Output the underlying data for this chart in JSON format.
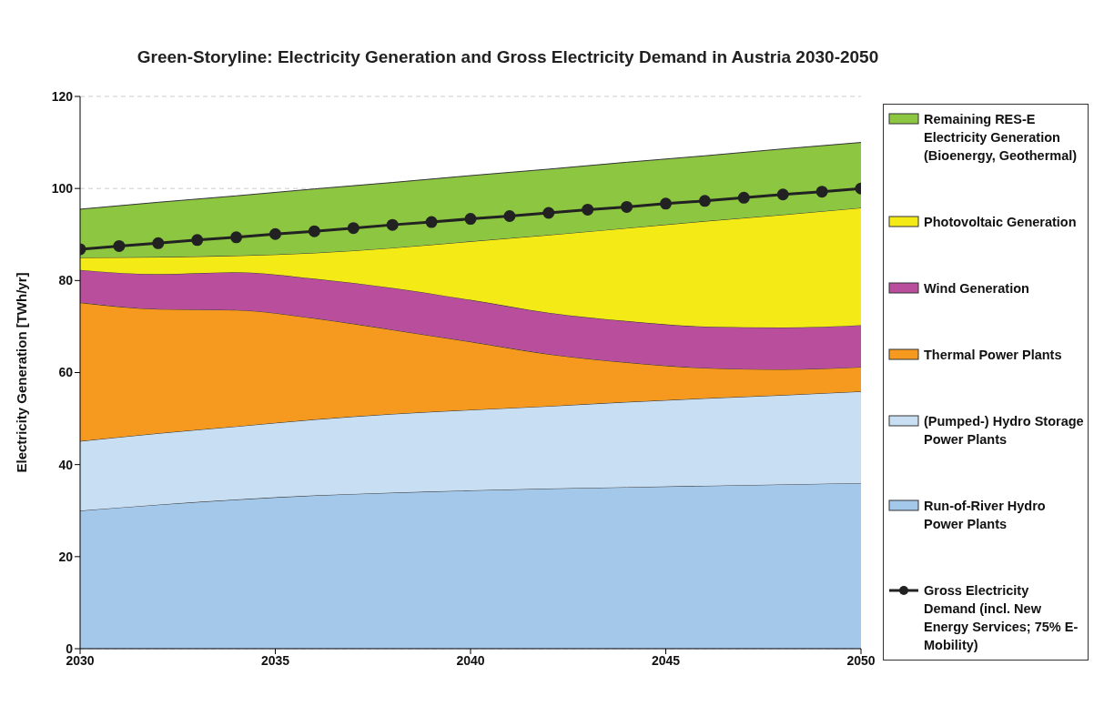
{
  "chart_data": {
    "type": "area",
    "stacked": true,
    "title": "Green-Storyline: Electricity Generation and Gross Electricity Demand in Austria 2030-2050",
    "ylabel": "Electricity Generation [TWh/yr]",
    "x": [
      2030,
      2032,
      2034,
      2036,
      2038,
      2040,
      2042,
      2044,
      2046,
      2048,
      2050
    ],
    "xlim": [
      2030,
      2050
    ],
    "xticks": [
      2030,
      2035,
      2040,
      2045,
      2050
    ],
    "ylim": [
      0,
      120
    ],
    "yticks": [
      0,
      20,
      40,
      60,
      80,
      100,
      120
    ],
    "grid": "y",
    "legend": "right",
    "series": [
      {
        "name": "Run-of-River Hydro Power Plants",
        "color": "#a4c8ea",
        "values": [
          30.0,
          31.3,
          32.4,
          33.3,
          33.9,
          34.4,
          34.8,
          35.1,
          35.4,
          35.7,
          36.0
        ]
      },
      {
        "name": "(Pumped-) Hydro Storage Power Plants",
        "color": "#c8def2",
        "values": [
          15.1,
          15.5,
          15.9,
          16.5,
          17.1,
          17.5,
          17.9,
          18.5,
          19.0,
          19.4,
          19.9
        ]
      },
      {
        "name": "Thermal Power Plants",
        "color": "#f59a1e",
        "values": [
          30.1,
          27.0,
          25.3,
          22.0,
          18.3,
          14.8,
          11.3,
          8.6,
          6.6,
          5.6,
          5.3
        ]
      },
      {
        "name": "Wind Generation",
        "color": "#b94f9c",
        "values": [
          7.1,
          7.6,
          8.2,
          8.6,
          9.1,
          9.1,
          9.0,
          9.0,
          9.0,
          9.1,
          9.1
        ]
      },
      {
        "name": "Photovoltaic Generation",
        "color": "#f3ea16",
        "values": [
          2.7,
          3.7,
          3.6,
          5.6,
          8.7,
          12.7,
          16.9,
          20.2,
          22.9,
          24.5,
          25.5
        ]
      },
      {
        "name": "Remaining RES-E Electricity Generation (Bioenergy, Geothermal)",
        "color": "#8dc641",
        "values": [
          10.5,
          11.9,
          13.0,
          13.9,
          14.2,
          14.3,
          14.3,
          14.3,
          14.2,
          14.3,
          14.2
        ]
      },
      {
        "name": "Gross Electricity Demand (incl. New Energy Services; 75% E-Mobility)",
        "type": "line",
        "marker": "circle",
        "color": "#222222",
        "x": [
          2030,
          2031,
          2032,
          2033,
          2034,
          2035,
          2036,
          2037,
          2038,
          2039,
          2040,
          2041,
          2042,
          2043,
          2044,
          2045,
          2046,
          2047,
          2048,
          2049,
          2050
        ],
        "values": [
          86.8,
          87.5,
          88.1,
          88.8,
          89.4,
          90.1,
          90.7,
          91.4,
          92.1,
          92.7,
          93.4,
          94.0,
          94.7,
          95.4,
          96.0,
          96.7,
          97.3,
          98.0,
          98.7,
          99.3,
          100.0
        ]
      }
    ]
  }
}
